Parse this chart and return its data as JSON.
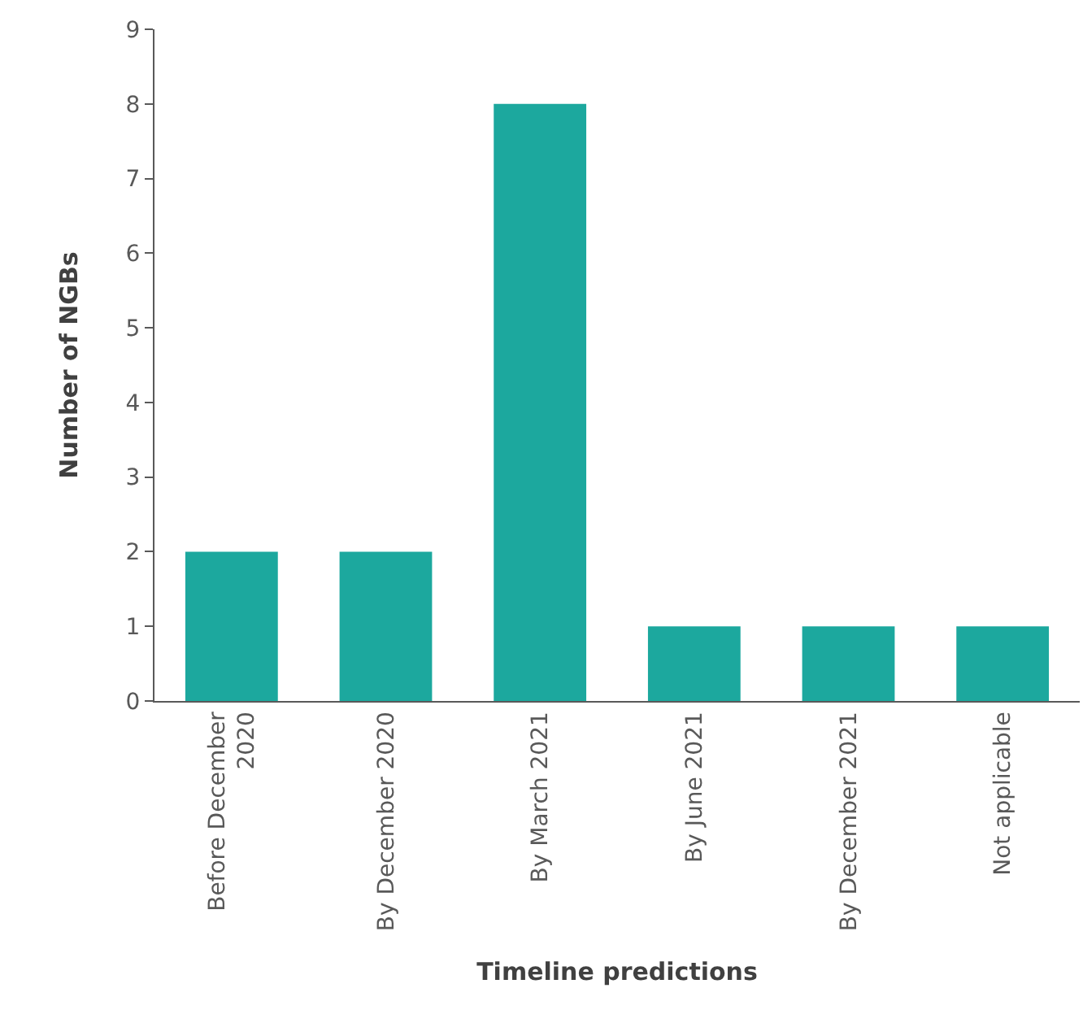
{
  "chart_data": {
    "type": "bar",
    "xlabel": "Timeline predictions",
    "ylabel": "Number of NGBs",
    "categories": [
      "Before December 2020",
      "By December 2020",
      "By March 2021",
      "By June 2021",
      "By December 2021",
      "Not applicable"
    ],
    "values": [
      2,
      2,
      8,
      1,
      1,
      1
    ],
    "color": "#1ca89e",
    "ylim": [
      0,
      9
    ],
    "yticks": [
      0,
      1,
      2,
      3,
      4,
      5,
      6,
      7,
      8,
      9
    ]
  }
}
